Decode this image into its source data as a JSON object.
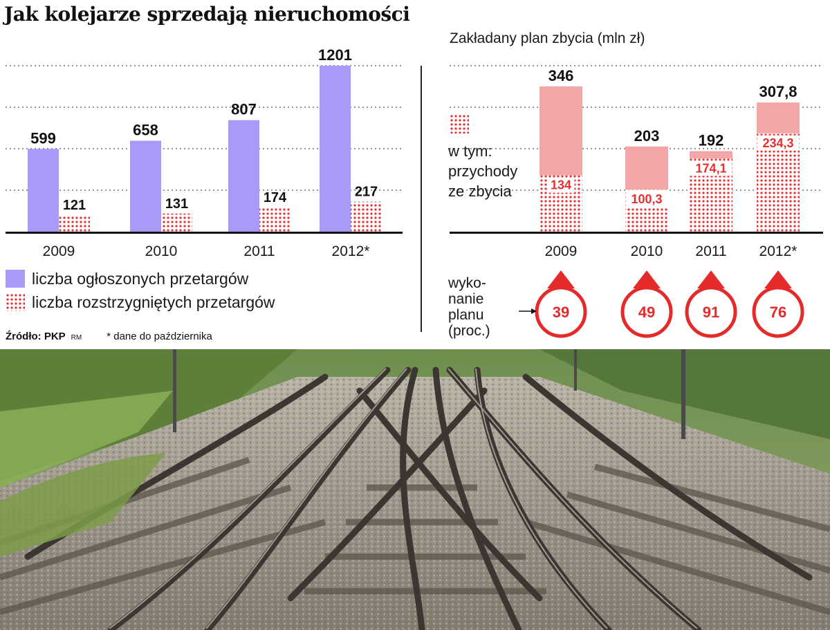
{
  "title": "Jak kolejarze sprzedają nieruchomości",
  "legend": {
    "announced": "liczba ogłoszonych przetargów",
    "resolved": "liczba rozstrzygniętych przetargów"
  },
  "footer": {
    "source": "Źródło: PKP",
    "rm": "RM",
    "note": "* dane do października"
  },
  "right_panel": {
    "subtitle": "Zakładany plan zbycia (mln zł)",
    "note_lines": [
      "w tym:",
      "przychody",
      "ze zbycia"
    ],
    "exec_lines": [
      "wyko-",
      "nanie",
      "planu",
      "(proc.)"
    ]
  },
  "colors": {
    "blue_bar": "#a89bf7",
    "red_dots": "#e53030",
    "pink_bar": "#f2a6a8",
    "circle_red": "#e42a2a"
  },
  "icons": [
    "arrow-right-icon",
    "teardrop-circle-icon"
  ],
  "chart_data": [
    {
      "type": "bar",
      "categories": [
        "2009",
        "2010",
        "2011",
        "2012*"
      ],
      "series": [
        {
          "name": "liczba ogłoszonych przetargów",
          "values": [
            599,
            658,
            807,
            1201
          ],
          "labels": [
            "599",
            "658",
            "807",
            "1201"
          ]
        },
        {
          "name": "liczba rozstrzygniętych przetargów",
          "values": [
            121,
            131,
            174,
            217
          ],
          "labels": [
            "121",
            "131",
            "174",
            "217"
          ]
        }
      ],
      "ylim": [
        0,
        1201
      ],
      "grid": true
    },
    {
      "type": "bar",
      "title": "Zakładany plan zbycia (mln zł)",
      "categories": [
        "2009",
        "2010",
        "2011",
        "2012*"
      ],
      "series": [
        {
          "name": "Zakładany plan zbycia",
          "values": [
            346,
            203,
            192,
            307.8
          ],
          "labels": [
            "346",
            "203",
            "192",
            "307,8"
          ]
        },
        {
          "name": "w tym: przychody ze zbycia",
          "values": [
            134,
            100.3,
            174.1,
            234.3
          ],
          "labels": [
            "134",
            "100,3",
            "174,1",
            "234,3"
          ]
        }
      ],
      "execution": {
        "label": "wykonanie planu (proc.)",
        "values": [
          39,
          49,
          91,
          76
        ],
        "labels": [
          "39",
          "49",
          "91",
          "76"
        ]
      },
      "ylim": [
        0,
        346
      ],
      "grid": true
    }
  ]
}
